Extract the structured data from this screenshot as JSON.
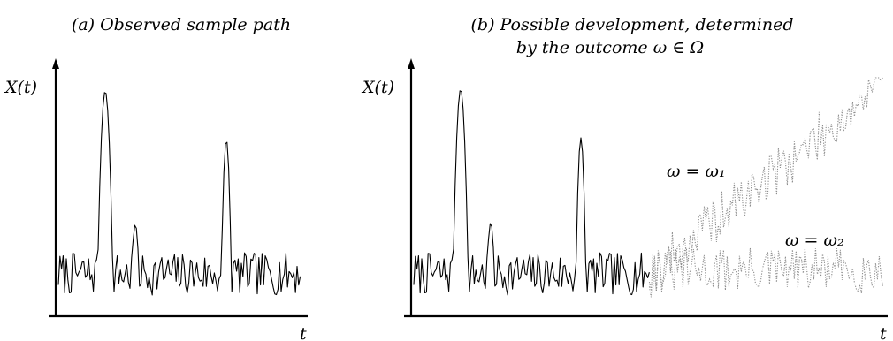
{
  "panel_a": {
    "caption": "(a) Observed sample path",
    "y_label": "X(t)",
    "x_label": "t"
  },
  "panel_b": {
    "caption_line1": "(b) Possible development, determined",
    "caption_line2": "by the outcome ω ∈ Ω",
    "y_label": "X(t)",
    "x_label": "t",
    "branch_1_label": "ω = ω₁",
    "branch_2_label": "ω = ω₂"
  },
  "colors": {
    "observed_path": "#000000",
    "possible_paths": "#8c8c8c"
  }
}
